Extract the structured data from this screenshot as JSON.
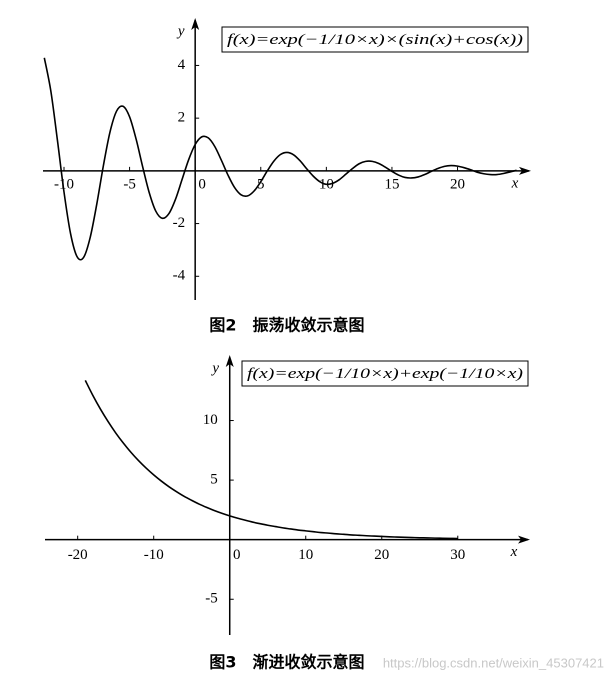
{
  "chart_data": [
    {
      "type": "line",
      "color": "#000000",
      "formula": "f(x)=exp(−1/10×x)×(sin(x)+cos(x))",
      "x_label": "x",
      "y_label": "y",
      "xlim": [
        -11.6,
        25.6
      ],
      "ylim": [
        -4.9,
        5.8
      ],
      "xticks": [
        -10,
        -5,
        0,
        5,
        10,
        15,
        20
      ],
      "yticks": [
        -4,
        -2,
        2,
        4
      ],
      "x": [
        -11.5,
        -11,
        -10.5,
        -10,
        -9.5,
        -9,
        -8.5,
        -8,
        -7.5,
        -7,
        -6.5,
        -6,
        -5.5,
        -5,
        -4.5,
        -4,
        -3.5,
        -3,
        -2.5,
        -2,
        -1.5,
        -1,
        -0.5,
        0,
        0.5,
        1,
        1.5,
        2,
        2.5,
        3,
        3.5,
        4,
        4.5,
        5,
        5.5,
        6,
        6.5,
        7,
        7.5,
        8,
        8.5,
        9,
        9.5,
        10,
        10.5,
        11,
        11.5,
        12,
        12.5,
        13,
        13.5,
        14,
        14.5,
        15,
        15.5,
        16,
        16.5,
        17,
        17.5,
        18,
        18.5,
        19,
        19.5,
        20,
        20.5,
        21,
        21.5,
        22,
        22.5,
        23,
        23.5,
        24,
        24.5
      ],
      "values": [
        4.29,
        3.02,
        1.16,
        -0.8,
        -2.38,
        -3.26,
        -3.28,
        -2.52,
        -1.26,
        0.19,
        1.46,
        2.26,
        2.45,
        2.05,
        1.2,
        0.15,
        -0.83,
        -1.53,
        -1.8,
        -1.62,
        -1.08,
        -0.33,
        0.42,
        1,
        1.29,
        1.25,
        0.92,
        0.4,
        -0.16,
        -0.63,
        -0.91,
        -0.95,
        -0.76,
        -0.41,
        0,
        0.37,
        0.62,
        0.7,
        0.61,
        0.38,
        0.08,
        -0.2,
        -0.41,
        -0.51,
        -0.47,
        -0.33,
        -0.12,
        0.09,
        0.27,
        0.36,
        0.36,
        0.28,
        0.14,
        -0.02,
        -0.16,
        -0.25,
        -0.27,
        -0.23,
        -0.14,
        -0.02,
        0.09,
        0.17,
        0.2,
        0.18,
        0.12,
        0.04,
        -0.05,
        -0.11,
        -0.14,
        -0.14,
        -0.1,
        -0.04,
        0.02
      ],
      "caption": "图2　振荡收敛示意图"
    },
    {
      "type": "line",
      "color": "#000000",
      "formula": "f(x)=exp(−1/10×x)+exp(−1/10×x)",
      "x_label": "x",
      "y_label": "y",
      "xlim": [
        -24.3,
        39.5
      ],
      "ylim": [
        -8,
        15.5
      ],
      "xticks": [
        -20,
        -10,
        0,
        10,
        20,
        30
      ],
      "yticks": [
        -5,
        5,
        10
      ],
      "x": [
        -19,
        -18,
        -17,
        -16,
        -15,
        -14,
        -13,
        -12,
        -11,
        -10,
        -9,
        -8,
        -7,
        -6,
        -5,
        -4,
        -3,
        -2,
        -1,
        0,
        1,
        2,
        3,
        4,
        5,
        6,
        7,
        8,
        9,
        10,
        11,
        12,
        13,
        14,
        15,
        16,
        17,
        18,
        19,
        20,
        21,
        22,
        23,
        24,
        25,
        26,
        27,
        28,
        29,
        30
      ],
      "values": [
        13.37,
        12.1,
        10.95,
        9.91,
        8.96,
        8.11,
        7.34,
        6.64,
        6.01,
        5.44,
        4.92,
        4.45,
        4.03,
        3.64,
        3.3,
        2.98,
        2.7,
        2.44,
        2.21,
        2,
        1.81,
        1.64,
        1.48,
        1.34,
        1.21,
        1.1,
        0.99,
        0.9,
        0.81,
        0.74,
        0.67,
        0.6,
        0.55,
        0.49,
        0.45,
        0.4,
        0.37,
        0.33,
        0.3,
        0.27,
        0.24,
        0.22,
        0.2,
        0.18,
        0.16,
        0.15,
        0.13,
        0.12,
        0.11,
        0.1
      ],
      "caption": "图3　渐进收敛示意图"
    }
  ],
  "watermark": "https://blog.csdn.net/weixin_45307421"
}
